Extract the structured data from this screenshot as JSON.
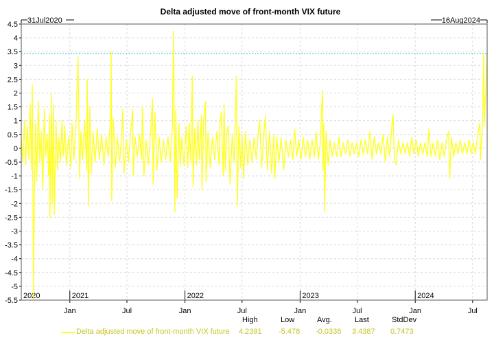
{
  "chart_data": {
    "type": "line",
    "title": "Delta adjusted move of front-month VIX future",
    "start_label": "31Jul2020",
    "end_label": "16Aug2024",
    "xlabel": "",
    "ylabel": "",
    "ylim": [
      -5.5,
      4.5
    ],
    "y_ticks": [
      "4.5",
      "4",
      "3.5",
      "3",
      "2.5",
      "2",
      "1.5",
      "1",
      "0.5",
      "0",
      "-0.5",
      "-1",
      "-1.5",
      "-2",
      "-2.5",
      "-3",
      "-3.5",
      "-4",
      "-4.5",
      "-5",
      "-5.5"
    ],
    "x_month_ticks": [
      {
        "date": "2021-01-01",
        "label": "Jan"
      },
      {
        "date": "2021-07-01",
        "label": "Jul"
      },
      {
        "date": "2022-01-01",
        "label": "Jan"
      },
      {
        "date": "2022-07-01",
        "label": "Jul"
      },
      {
        "date": "2023-01-01",
        "label": "Jan"
      },
      {
        "date": "2023-07-01",
        "label": "Jul"
      },
      {
        "date": "2024-01-01",
        "label": "Jan"
      },
      {
        "date": "2024-07-01",
        "label": "Jul"
      }
    ],
    "x_year_labels": [
      {
        "date": "2020-07-31",
        "label": "2020"
      },
      {
        "date": "2021-01-01",
        "label": "2021"
      },
      {
        "date": "2022-01-01",
        "label": "2022"
      },
      {
        "date": "2023-01-01",
        "label": "2023"
      },
      {
        "date": "2024-01-01",
        "label": "2024"
      }
    ],
    "grid": true,
    "reference_line": {
      "y": 3.4387,
      "color": "#40c8d8"
    },
    "series": [
      {
        "name": "Delta adjusted move of front-month VIX future",
        "color": "#ffff22",
        "points": [
          [
            "2020-07-31",
            0.3
          ],
          [
            "2020-08-05",
            -0.5
          ],
          [
            "2020-08-10",
            1.0
          ],
          [
            "2020-08-14",
            -0.6
          ],
          [
            "2020-08-19",
            0.8
          ],
          [
            "2020-08-24",
            -0.4
          ],
          [
            "2020-08-28",
            1.6
          ],
          [
            "2020-09-02",
            -0.8
          ],
          [
            "2020-09-04",
            2.3
          ],
          [
            "2020-09-08",
            -5.478
          ],
          [
            "2020-09-10",
            -2.2
          ],
          [
            "2020-09-14",
            0.9
          ],
          [
            "2020-09-18",
            -1.2
          ],
          [
            "2020-09-23",
            1.7
          ],
          [
            "2020-09-28",
            -0.5
          ],
          [
            "2020-10-02",
            0.6
          ],
          [
            "2020-10-07",
            -1.5
          ],
          [
            "2020-10-12",
            1.4
          ],
          [
            "2020-10-16",
            -0.3
          ],
          [
            "2020-10-21",
            0.5
          ],
          [
            "2020-10-26",
            -1.0
          ],
          [
            "2020-10-28",
            1.2
          ],
          [
            "2020-10-30",
            -2.5
          ],
          [
            "2020-11-04",
            2.0
          ],
          [
            "2020-11-06",
            -2.0
          ],
          [
            "2020-11-10",
            1.6
          ],
          [
            "2020-11-13",
            -2.4
          ],
          [
            "2020-11-18",
            1.0
          ],
          [
            "2020-11-23",
            -0.8
          ],
          [
            "2020-11-27",
            0.4
          ],
          [
            "2020-12-02",
            -0.5
          ],
          [
            "2020-12-07",
            1.0
          ],
          [
            "2020-12-11",
            -0.3
          ],
          [
            "2020-12-16",
            0.8
          ],
          [
            "2020-12-21",
            -0.6
          ],
          [
            "2020-12-28",
            0.4
          ],
          [
            "2021-01-04",
            -0.7
          ],
          [
            "2021-01-08",
            0.9
          ],
          [
            "2021-01-14",
            -0.4
          ],
          [
            "2021-01-20",
            0.7
          ],
          [
            "2021-01-27",
            3.3
          ],
          [
            "2021-02-01",
            -1.1
          ],
          [
            "2021-02-05",
            0.6
          ],
          [
            "2021-02-10",
            -0.4
          ],
          [
            "2021-02-17",
            1.0
          ],
          [
            "2021-02-23",
            -0.8
          ],
          [
            "2021-02-25",
            2.5
          ],
          [
            "2021-03-01",
            -2.1
          ],
          [
            "2021-03-05",
            1.5
          ],
          [
            "2021-03-10",
            -0.9
          ],
          [
            "2021-03-16",
            0.6
          ],
          [
            "2021-03-22",
            -0.5
          ],
          [
            "2021-03-29",
            0.7
          ],
          [
            "2021-04-05",
            -0.4
          ],
          [
            "2021-04-12",
            0.5
          ],
          [
            "2021-04-19",
            -0.6
          ],
          [
            "2021-04-26",
            0.4
          ],
          [
            "2021-05-03",
            -0.3
          ],
          [
            "2021-05-10",
            1.2
          ],
          [
            "2021-05-12",
            3.5
          ],
          [
            "2021-05-14",
            -1.9
          ],
          [
            "2021-05-19",
            1.1
          ],
          [
            "2021-05-25",
            -0.7
          ],
          [
            "2021-06-01",
            0.4
          ],
          [
            "2021-06-08",
            -0.5
          ],
          [
            "2021-06-15",
            0.6
          ],
          [
            "2021-06-18",
            1.4
          ],
          [
            "2021-06-22",
            -0.9
          ],
          [
            "2021-06-29",
            0.3
          ],
          [
            "2021-07-06",
            -0.5
          ],
          [
            "2021-07-12",
            0.5
          ],
          [
            "2021-07-19",
            1.4
          ],
          [
            "2021-07-21",
            -1.0
          ],
          [
            "2021-07-27",
            0.4
          ],
          [
            "2021-08-03",
            -0.3
          ],
          [
            "2021-08-10",
            0.5
          ],
          [
            "2021-08-17",
            -0.4
          ],
          [
            "2021-08-19",
            1.5
          ],
          [
            "2021-08-24",
            -1.0
          ],
          [
            "2021-08-31",
            0.3
          ],
          [
            "2021-09-07",
            -0.6
          ],
          [
            "2021-09-14",
            0.6
          ],
          [
            "2021-09-20",
            1.8
          ],
          [
            "2021-09-22",
            -1.3
          ],
          [
            "2021-09-28",
            1.3
          ],
          [
            "2021-10-04",
            -0.8
          ],
          [
            "2021-10-11",
            0.4
          ],
          [
            "2021-10-18",
            -0.5
          ],
          [
            "2021-10-25",
            0.3
          ],
          [
            "2021-11-01",
            -0.4
          ],
          [
            "2021-11-08",
            0.4
          ],
          [
            "2021-11-15",
            -0.5
          ],
          [
            "2021-11-22",
            0.8
          ],
          [
            "2021-11-26",
            4.2391
          ],
          [
            "2021-11-30",
            -2.3
          ],
          [
            "2021-12-03",
            1.4
          ],
          [
            "2021-12-07",
            -1.8
          ],
          [
            "2021-12-13",
            0.9
          ],
          [
            "2021-12-17",
            -0.6
          ],
          [
            "2021-12-22",
            0.4
          ],
          [
            "2021-12-29",
            -0.6
          ],
          [
            "2022-01-05",
            0.8
          ],
          [
            "2022-01-10",
            -0.7
          ],
          [
            "2022-01-14",
            0.9
          ],
          [
            "2022-01-19",
            -0.5
          ],
          [
            "2022-01-24",
            2.6
          ],
          [
            "2022-01-27",
            -1.4
          ],
          [
            "2022-02-01",
            0.7
          ],
          [
            "2022-02-07",
            -0.6
          ],
          [
            "2022-02-11",
            1.0
          ],
          [
            "2022-02-16",
            -0.4
          ],
          [
            "2022-02-22",
            1.2
          ],
          [
            "2022-02-24",
            -1.5
          ],
          [
            "2022-03-01",
            1.0
          ],
          [
            "2022-03-07",
            1.7
          ],
          [
            "2022-03-09",
            -1.2
          ],
          [
            "2022-03-15",
            0.6
          ],
          [
            "2022-03-22",
            -0.7
          ],
          [
            "2022-03-29",
            0.4
          ],
          [
            "2022-04-05",
            -0.4
          ],
          [
            "2022-04-12",
            0.6
          ],
          [
            "2022-04-19",
            -0.6
          ],
          [
            "2022-04-22",
            0.9
          ],
          [
            "2022-04-26",
            1.3
          ],
          [
            "2022-05-02",
            -1.0
          ],
          [
            "2022-05-05",
            1.6
          ],
          [
            "2022-05-09",
            -0.8
          ],
          [
            "2022-05-13",
            0.5
          ],
          [
            "2022-05-18",
            0.8
          ],
          [
            "2022-05-24",
            -1.3
          ],
          [
            "2022-05-31",
            0.5
          ],
          [
            "2022-06-06",
            -0.5
          ],
          [
            "2022-06-10",
            1.2
          ],
          [
            "2022-06-13",
            2.6
          ],
          [
            "2022-06-16",
            -2.1
          ],
          [
            "2022-06-21",
            0.8
          ],
          [
            "2022-06-27",
            -0.7
          ],
          [
            "2022-07-01",
            0.5
          ],
          [
            "2022-07-06",
            -1.1
          ],
          [
            "2022-07-12",
            0.6
          ],
          [
            "2022-07-19",
            -0.6
          ],
          [
            "2022-07-25",
            0.3
          ],
          [
            "2022-08-01",
            -0.5
          ],
          [
            "2022-08-08",
            0.4
          ],
          [
            "2022-08-15",
            -0.4
          ],
          [
            "2022-08-22",
            0.6
          ],
          [
            "2022-08-26",
            1.0
          ],
          [
            "2022-09-01",
            -0.7
          ],
          [
            "2022-09-08",
            0.5
          ],
          [
            "2022-09-13",
            1.2
          ],
          [
            "2022-09-19",
            -0.8
          ],
          [
            "2022-09-26",
            0.6
          ],
          [
            "2022-10-03",
            -0.9
          ],
          [
            "2022-10-10",
            0.5
          ],
          [
            "2022-10-13",
            -1.1
          ],
          [
            "2022-10-19",
            0.4
          ],
          [
            "2022-10-26",
            -0.5
          ],
          [
            "2022-11-02",
            0.4
          ],
          [
            "2022-11-10",
            -0.8
          ],
          [
            "2022-11-17",
            0.3
          ],
          [
            "2022-11-25",
            -0.3
          ],
          [
            "2022-12-02",
            0.3
          ],
          [
            "2022-12-09",
            -0.4
          ],
          [
            "2022-12-15",
            0.7
          ],
          [
            "2022-12-21",
            -0.3
          ],
          [
            "2022-12-28",
            0.3
          ],
          [
            "2023-01-04",
            -0.4
          ],
          [
            "2023-01-11",
            0.4
          ],
          [
            "2023-01-18",
            -0.3
          ],
          [
            "2023-01-25",
            0.3
          ],
          [
            "2023-02-01",
            -0.4
          ],
          [
            "2023-02-08",
            0.3
          ],
          [
            "2023-02-15",
            -0.3
          ],
          [
            "2023-02-21",
            0.6
          ],
          [
            "2023-02-28",
            -0.4
          ],
          [
            "2023-03-07",
            0.3
          ],
          [
            "2023-03-10",
            1.4
          ],
          [
            "2023-03-13",
            2.1
          ],
          [
            "2023-03-15",
            -0.8
          ],
          [
            "2023-03-17",
            0.9
          ],
          [
            "2023-03-20",
            -2.3
          ],
          [
            "2023-03-24",
            0.6
          ],
          [
            "2023-03-31",
            -0.6
          ],
          [
            "2023-04-06",
            0.3
          ],
          [
            "2023-04-13",
            -0.3
          ],
          [
            "2023-04-20",
            0.2
          ],
          [
            "2023-04-27",
            -0.3
          ],
          [
            "2023-05-04",
            0.4
          ],
          [
            "2023-05-11",
            -0.3
          ],
          [
            "2023-05-18",
            0.2
          ],
          [
            "2023-05-25",
            -0.2
          ],
          [
            "2023-06-01",
            0.3
          ],
          [
            "2023-06-08",
            -0.3
          ],
          [
            "2023-06-15",
            0.2
          ],
          [
            "2023-06-22",
            -0.2
          ],
          [
            "2023-06-29",
            0.2
          ],
          [
            "2023-07-06",
            -0.3
          ],
          [
            "2023-07-13",
            0.3
          ],
          [
            "2023-07-20",
            -0.2
          ],
          [
            "2023-07-27",
            0.3
          ],
          [
            "2023-08-03",
            -0.2
          ],
          [
            "2023-08-10",
            0.6
          ],
          [
            "2023-08-17",
            -0.4
          ],
          [
            "2023-08-24",
            0.4
          ],
          [
            "2023-08-31",
            -0.2
          ],
          [
            "2023-09-07",
            0.2
          ],
          [
            "2023-09-14",
            -0.2
          ],
          [
            "2023-09-21",
            0.5
          ],
          [
            "2023-09-28",
            -0.5
          ],
          [
            "2023-10-05",
            0.4
          ],
          [
            "2023-10-12",
            -0.3
          ],
          [
            "2023-10-19",
            0.8
          ],
          [
            "2023-10-23",
            1.2
          ],
          [
            "2023-10-27",
            -0.4
          ],
          [
            "2023-11-02",
            -0.6
          ],
          [
            "2023-11-09",
            0.3
          ],
          [
            "2023-11-16",
            -0.2
          ],
          [
            "2023-11-23",
            0.2
          ],
          [
            "2023-11-30",
            -0.2
          ],
          [
            "2023-12-07",
            0.2
          ],
          [
            "2023-12-14",
            -0.3
          ],
          [
            "2023-12-21",
            0.4
          ],
          [
            "2023-12-28",
            -0.2
          ],
          [
            "2024-01-04",
            0.3
          ],
          [
            "2024-01-11",
            -0.3
          ],
          [
            "2024-01-18",
            0.2
          ],
          [
            "2024-01-25",
            -0.2
          ],
          [
            "2024-02-01",
            0.2
          ],
          [
            "2024-02-08",
            -0.3
          ],
          [
            "2024-02-13",
            0.7
          ],
          [
            "2024-02-20",
            -0.3
          ],
          [
            "2024-02-27",
            0.2
          ],
          [
            "2024-03-05",
            -0.3
          ],
          [
            "2024-03-12",
            0.3
          ],
          [
            "2024-03-19",
            -0.4
          ],
          [
            "2024-03-26",
            0.2
          ],
          [
            "2024-04-02",
            -0.3
          ],
          [
            "2024-04-09",
            0.3
          ],
          [
            "2024-04-16",
            0.6
          ],
          [
            "2024-04-19",
            -1.1
          ],
          [
            "2024-04-25",
            0.4
          ],
          [
            "2024-05-02",
            -0.3
          ],
          [
            "2024-05-09",
            0.2
          ],
          [
            "2024-05-16",
            -0.2
          ],
          [
            "2024-05-23",
            0.3
          ],
          [
            "2024-05-30",
            -0.2
          ],
          [
            "2024-06-06",
            0.2
          ],
          [
            "2024-06-13",
            -0.2
          ],
          [
            "2024-06-20",
            0.3
          ],
          [
            "2024-06-27",
            -0.2
          ],
          [
            "2024-07-03",
            0.2
          ],
          [
            "2024-07-10",
            -0.2
          ],
          [
            "2024-07-17",
            0.5
          ],
          [
            "2024-07-24",
            0.9
          ],
          [
            "2024-07-26",
            -0.4
          ],
          [
            "2024-07-31",
            0.6
          ],
          [
            "2024-08-02",
            1.3
          ],
          [
            "2024-08-05",
            3.4387
          ],
          [
            "2024-08-07",
            0.8
          ],
          [
            "2024-08-09",
            1.5
          ],
          [
            "2024-08-12",
            2.1
          ],
          [
            "2024-08-14",
            2.8
          ],
          [
            "2024-08-16",
            3.4387
          ]
        ]
      }
    ],
    "legend": {
      "name": "Delta adjusted move of front-month VIX future",
      "headers": [
        "High",
        "Low",
        "Avg.",
        "Last",
        "StdDev"
      ],
      "values": [
        "4.2391",
        "-5.478",
        "-0.0336",
        "3.4387",
        "0.7473"
      ]
    }
  }
}
